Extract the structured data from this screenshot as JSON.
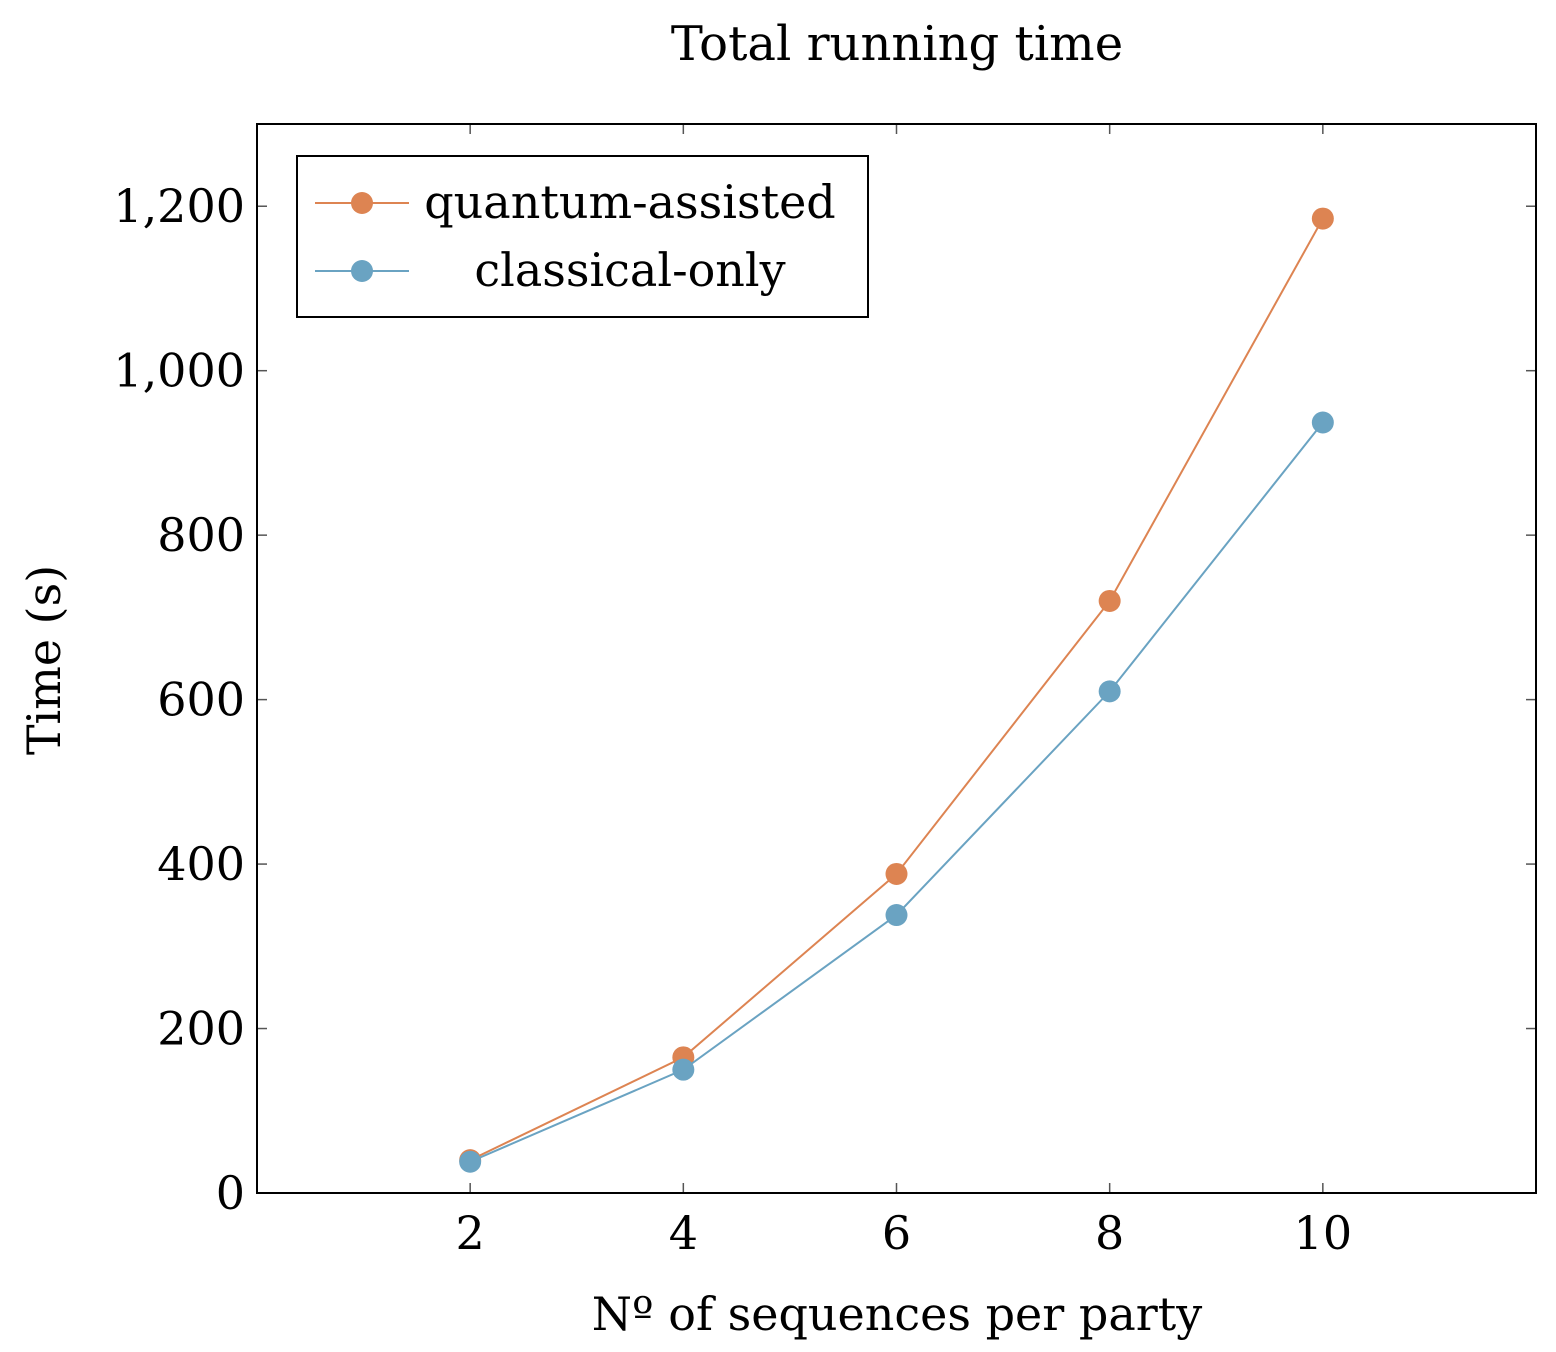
{
  "chart_data": {
    "type": "line",
    "title": "Total running time",
    "xlabel": "Nº of sequences per party",
    "ylabel": "Time (s)",
    "x": [
      2,
      4,
      6,
      8,
      10
    ],
    "xlim": [
      0,
      12
    ],
    "ylim": [
      0,
      1300
    ],
    "xticks": [
      2,
      4,
      6,
      8,
      10
    ],
    "xtick_labels": [
      "2",
      "4",
      "6",
      "8",
      "10"
    ],
    "yticks": [
      0,
      200,
      400,
      600,
      800,
      1000,
      1200
    ],
    "ytick_labels": [
      "0",
      "200",
      "400",
      "600",
      "800",
      "1,000",
      "1,200"
    ],
    "grid": false,
    "legend_position": "top-left",
    "series": [
      {
        "name": "quantum-assisted",
        "color": "#dd8452",
        "values": [
          40,
          165,
          388,
          720,
          1185
        ]
      },
      {
        "name": "classical-only",
        "color": "#6aa3c2",
        "values": [
          38,
          150,
          338,
          610,
          937
        ]
      }
    ]
  }
}
